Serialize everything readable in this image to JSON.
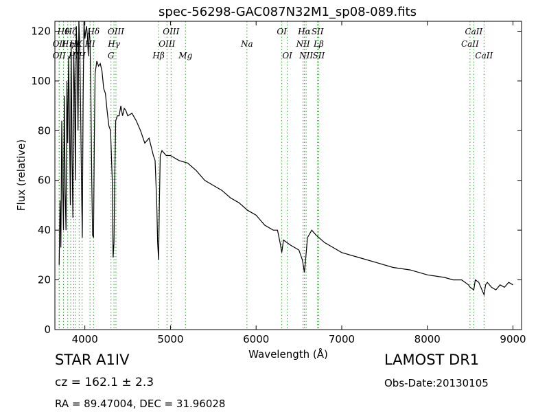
{
  "chart_data": {
    "type": "line",
    "title": "spec-56298-GAC087N32M1_sp08-089.fits",
    "xlabel": "Wavelength (Å)",
    "ylabel": "Flux (relative)",
    "xlim": [
      3650,
      9100
    ],
    "ylim": [
      0,
      124
    ],
    "xticks": [
      4000,
      5000,
      6000,
      7000,
      8000,
      9000
    ],
    "yticks": [
      0,
      20,
      40,
      60,
      80,
      100,
      120
    ],
    "grid": false,
    "line_color": "#000000",
    "marker_color": "#2ca02c",
    "spectrum": {
      "x": [
        3700,
        3710,
        3720,
        3730,
        3740,
        3750,
        3760,
        3770,
        3780,
        3790,
        3800,
        3810,
        3820,
        3830,
        3840,
        3850,
        3860,
        3870,
        3880,
        3890,
        3900,
        3910,
        3920,
        3930,
        3940,
        3950,
        3960,
        3970,
        3980,
        3990,
        4000,
        4010,
        4020,
        4030,
        4040,
        4050,
        4060,
        4070,
        4080,
        4090,
        4101,
        4110,
        4120,
        4140,
        4160,
        4180,
        4200,
        4220,
        4240,
        4260,
        4280,
        4300,
        4320,
        4330,
        4340,
        4350,
        4360,
        4380,
        4400,
        4420,
        4440,
        4460,
        4480,
        4500,
        4550,
        4600,
        4650,
        4700,
        4750,
        4800,
        4820,
        4840,
        4850,
        4861,
        4870,
        4880,
        4900,
        4950,
        5000,
        5100,
        5200,
        5300,
        5400,
        5500,
        5600,
        5700,
        5800,
        5900,
        6000,
        6100,
        6200,
        6250,
        6280,
        6300,
        6320,
        6400,
        6450,
        6500,
        6540,
        6555,
        6563,
        6575,
        6600,
        6650,
        6700,
        6800,
        6900,
        7000,
        7200,
        7400,
        7600,
        7800,
        8000,
        8200,
        8300,
        8400,
        8480,
        8500,
        8542,
        8560,
        8600,
        8662,
        8680,
        8700,
        8750,
        8800,
        8850,
        8900,
        8950,
        9000
      ],
      "y": [
        26,
        52,
        33,
        84,
        60,
        40,
        94,
        55,
        40,
        100,
        75,
        110,
        85,
        50,
        115,
        70,
        45,
        112,
        95,
        60,
        122,
        110,
        80,
        124,
        115,
        90,
        60,
        37,
        95,
        124,
        117,
        120,
        122,
        118,
        110,
        121,
        116,
        95,
        60,
        38,
        37,
        75,
        103,
        108,
        106,
        107,
        104,
        97,
        95,
        88,
        82,
        80,
        60,
        29,
        35,
        62,
        84,
        86,
        86,
        90,
        86,
        89,
        88,
        86,
        87,
        84,
        80,
        75,
        77,
        70,
        68,
        50,
        35,
        28,
        50,
        70,
        72,
        70,
        70,
        68,
        67,
        64,
        60,
        58,
        56,
        53,
        51,
        48,
        46,
        42,
        40,
        40,
        35,
        31,
        36,
        34,
        33,
        32,
        28,
        25,
        23,
        27,
        37,
        40,
        38,
        35,
        33,
        31,
        29,
        27,
        25,
        24,
        22,
        21,
        20,
        20,
        18,
        17,
        16,
        20,
        19,
        14,
        18,
        19,
        17,
        16,
        18,
        17,
        19,
        18
      ]
    },
    "lines": [
      {
        "label": "Hθ",
        "x": 3750,
        "row": 1
      },
      {
        "label": "OII",
        "x": 3700,
        "row": 2
      },
      {
        "label": "OII",
        "x": 3700,
        "row": 3
      },
      {
        "label": "Hη",
        "x": 3800,
        "row": 2
      },
      {
        "label": "Hζ",
        "x": 3835,
        "row": 1
      },
      {
        "label": "HI",
        "x": 3870,
        "row": 3
      },
      {
        "label": "Hε",
        "x": 3889,
        "row": 2
      },
      {
        "label": "K",
        "x": 3933,
        "row": 2
      },
      {
        "label": "H",
        "x": 3968,
        "row": 3
      },
      {
        "label": "Hδ",
        "x": 4101,
        "row": 1
      },
      {
        "label": "HI",
        "x": 4060,
        "row": 2
      },
      {
        "label": "OIII",
        "x": 4363,
        "row": 1
      },
      {
        "label": "Hγ",
        "x": 4340,
        "row": 2
      },
      {
        "label": "G",
        "x": 4305,
        "row": 3
      },
      {
        "label": "OIII",
        "x": 5007,
        "row": 1
      },
      {
        "label": "OIII",
        "x": 4959,
        "row": 2
      },
      {
        "label": "Hβ",
        "x": 4861,
        "row": 3
      },
      {
        "label": "Mg",
        "x": 5175,
        "row": 3
      },
      {
        "label": "Na",
        "x": 5893,
        "row": 2
      },
      {
        "label": "OI",
        "x": 6300,
        "row": 1
      },
      {
        "label": "OI",
        "x": 6364,
        "row": 3
      },
      {
        "label": "Hα",
        "x": 6563,
        "row": 1
      },
      {
        "label": "NII",
        "x": 6548,
        "row": 2
      },
      {
        "label": "NII",
        "x": 6584,
        "row": 3
      },
      {
        "label": "SII",
        "x": 6717,
        "row": 1
      },
      {
        "label": "Lβ",
        "x": 6731,
        "row": 2
      },
      {
        "label": "SII",
        "x": 6731,
        "row": 3
      },
      {
        "label": "CaII",
        "x": 8542,
        "row": 1
      },
      {
        "label": "CaII",
        "x": 8498,
        "row": 2
      },
      {
        "label": "CaII",
        "x": 8662,
        "row": 3
      }
    ]
  },
  "info": {
    "object_class": "STAR   A1IV",
    "survey": "LAMOST DR1",
    "cz": "cz = 162.1 ± 2.3",
    "obs_date": "Obs-Date:20130105",
    "radec": "RA = 89.47004, DEC = 31.96028"
  }
}
